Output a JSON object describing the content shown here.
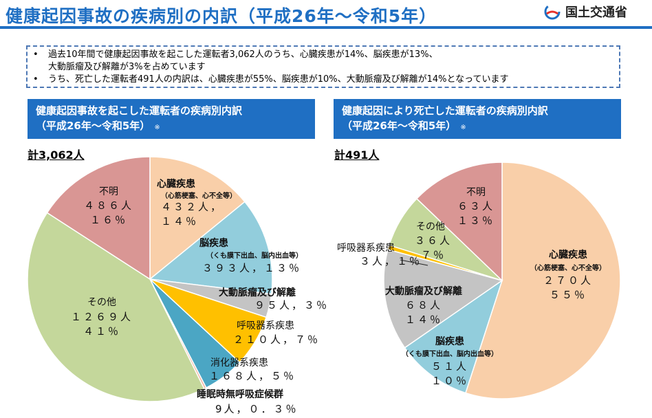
{
  "header": {
    "title": "健康起因事故の疾病別の内訳（平成26年～令和5年）",
    "logo_text": "国土交通省"
  },
  "summary": {
    "line1": "過去10年間で健康起因事故を起こした運転者3,062人のうち、心臓疾患が14%、脳疾患が13%、",
    "line1_cont": "大動脈瘤及び解離が3%を占めています",
    "line2": "うち、死亡した運転者491人の内訳は、心臓疾患が55%、脳疾患が10%、大動脈瘤及び解離が14%となっています"
  },
  "colors": {
    "heart": "#f9cfa9",
    "brain": "#92cddc",
    "aorta": "#c4c4c4",
    "resp": "#ffc000",
    "digest": "#4ba6c4",
    "sleep": "#f2b7a4",
    "other": "#c4d79b",
    "unknown": "#d99694",
    "header": "#1f6fc3"
  },
  "left": {
    "heading1": "健康起因事故を起こした運転者の疾病別内訳",
    "heading2": "（平成26年～令和5年）",
    "note": "※",
    "total": "計3,062人"
  },
  "right": {
    "heading1": "健康起因により死亡した運転者の疾病別内訳",
    "heading2": "（平成26年～令和5年）",
    "note": "※",
    "total": "計491人"
  },
  "chart_data": [
    {
      "type": "pie",
      "title": "健康起因事故を起こした運転者の疾病別内訳",
      "total": 3062,
      "slices": [
        {
          "key": "heart",
          "name": "心臓疾患",
          "sub": "（心筋梗塞、心不全等）",
          "count_text": "４３２人，",
          "pct_text": "１４％",
          "value": 432
        },
        {
          "key": "brain",
          "name": "脳疾患",
          "sub": "（くも膜下出血、脳内出血等）",
          "count_text": "３９３人，１３％",
          "value": 393
        },
        {
          "key": "aorta",
          "name": "大動脈瘤及び解離",
          "count_text": "９５人，３％",
          "value": 95
        },
        {
          "key": "resp",
          "name": "呼吸器系疾患",
          "count_text": "２１０人，７％",
          "value": 210
        },
        {
          "key": "digest",
          "name": "消化器系疾患",
          "count_text": "１６８人，５％",
          "value": 168
        },
        {
          "key": "sleep",
          "name": "睡眠時無呼吸症候群",
          "count_text": "9人，０．３％",
          "value": 9
        },
        {
          "key": "other",
          "name": "その他",
          "count_text": "１２６９人",
          "pct_text": "４１％",
          "value": 1269
        },
        {
          "key": "unknown",
          "name": "不明",
          "count_text": "４８６人",
          "pct_text": "１６％",
          "value": 486
        }
      ]
    },
    {
      "type": "pie",
      "title": "健康起因により死亡した運転者の疾病別内訳",
      "total": 491,
      "slices": [
        {
          "key": "heart",
          "name": "心臓疾患",
          "sub": "（心筋梗塞、心不全等）",
          "count_text": "２７０人",
          "pct_text": "５５％",
          "value": 270
        },
        {
          "key": "brain",
          "name": "脳疾患",
          "sub": "（くも膜下出血、脳内出血等）",
          "count_text": "５１人",
          "pct_text": "１０％",
          "value": 51
        },
        {
          "key": "aorta",
          "name": "大動脈瘤及び解離",
          "count_text": "６８人",
          "pct_text": "１４％",
          "value": 68
        },
        {
          "key": "resp",
          "name": "呼吸器系疾患",
          "count_text": "３人，１％",
          "value": 3
        },
        {
          "key": "other",
          "name": "その他",
          "count_text": "３６人",
          "pct_text": "７％",
          "value": 36
        },
        {
          "key": "unknown",
          "name": "不明",
          "count_text": "６３人",
          "pct_text": "１３％",
          "value": 63
        }
      ]
    }
  ]
}
